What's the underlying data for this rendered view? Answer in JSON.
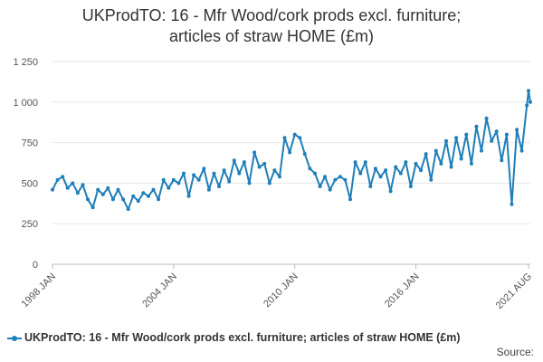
{
  "chart_data": {
    "type": "line",
    "title_line1": "UKProdTO: 16 - Mfr Wood/cork prods excl. furniture;",
    "title_line2": "articles of straw HOME (£m)",
    "series": [
      {
        "name": "UKProdTO: 16 - Mfr Wood/cork prods excl. furniture; articles of straw HOME (£m)",
        "color": "#1f7fb8",
        "points": [
          [
            1998.0,
            460
          ],
          [
            1998.25,
            520
          ],
          [
            1998.5,
            540
          ],
          [
            1998.75,
            470
          ],
          [
            1999.0,
            500
          ],
          [
            1999.25,
            440
          ],
          [
            1999.5,
            490
          ],
          [
            1999.75,
            400
          ],
          [
            2000.0,
            350
          ],
          [
            2000.25,
            460
          ],
          [
            2000.5,
            430
          ],
          [
            2000.75,
            470
          ],
          [
            2001.0,
            400
          ],
          [
            2001.25,
            460
          ],
          [
            2001.5,
            400
          ],
          [
            2001.75,
            340
          ],
          [
            2002.0,
            420
          ],
          [
            2002.25,
            390
          ],
          [
            2002.5,
            440
          ],
          [
            2002.75,
            420
          ],
          [
            2003.0,
            460
          ],
          [
            2003.25,
            400
          ],
          [
            2003.5,
            520
          ],
          [
            2003.75,
            470
          ],
          [
            2004.0,
            520
          ],
          [
            2004.25,
            500
          ],
          [
            2004.5,
            560
          ],
          [
            2004.75,
            420
          ],
          [
            2005.0,
            550
          ],
          [
            2005.25,
            520
          ],
          [
            2005.5,
            590
          ],
          [
            2005.75,
            460
          ],
          [
            2006.0,
            560
          ],
          [
            2006.25,
            480
          ],
          [
            2006.5,
            580
          ],
          [
            2006.75,
            510
          ],
          [
            2007.0,
            640
          ],
          [
            2007.25,
            560
          ],
          [
            2007.5,
            630
          ],
          [
            2007.75,
            500
          ],
          [
            2008.0,
            690
          ],
          [
            2008.25,
            600
          ],
          [
            2008.5,
            620
          ],
          [
            2008.75,
            500
          ],
          [
            2009.0,
            580
          ],
          [
            2009.25,
            540
          ],
          [
            2009.5,
            780
          ],
          [
            2009.75,
            690
          ],
          [
            2010.0,
            800
          ],
          [
            2010.25,
            780
          ],
          [
            2010.5,
            680
          ],
          [
            2010.75,
            590
          ],
          [
            2011.0,
            560
          ],
          [
            2011.25,
            480
          ],
          [
            2011.5,
            540
          ],
          [
            2011.75,
            460
          ],
          [
            2012.0,
            520
          ],
          [
            2012.25,
            540
          ],
          [
            2012.5,
            520
          ],
          [
            2012.75,
            400
          ],
          [
            2013.0,
            630
          ],
          [
            2013.25,
            560
          ],
          [
            2013.5,
            630
          ],
          [
            2013.75,
            480
          ],
          [
            2014.0,
            590
          ],
          [
            2014.25,
            540
          ],
          [
            2014.5,
            580
          ],
          [
            2014.75,
            450
          ],
          [
            2015.0,
            600
          ],
          [
            2015.25,
            560
          ],
          [
            2015.5,
            630
          ],
          [
            2015.75,
            480
          ],
          [
            2016.0,
            620
          ],
          [
            2016.25,
            580
          ],
          [
            2016.5,
            680
          ],
          [
            2016.75,
            520
          ],
          [
            2017.0,
            700
          ],
          [
            2017.25,
            620
          ],
          [
            2017.5,
            760
          ],
          [
            2017.75,
            600
          ],
          [
            2018.0,
            780
          ],
          [
            2018.25,
            650
          ],
          [
            2018.5,
            800
          ],
          [
            2018.75,
            620
          ],
          [
            2019.0,
            850
          ],
          [
            2019.25,
            700
          ],
          [
            2019.5,
            900
          ],
          [
            2019.75,
            760
          ],
          [
            2020.0,
            820
          ],
          [
            2020.25,
            640
          ],
          [
            2020.5,
            800
          ],
          [
            2020.75,
            370
          ],
          [
            2021.0,
            830
          ],
          [
            2021.25,
            700
          ],
          [
            2021.5,
            980
          ],
          [
            2021.58,
            1070
          ],
          [
            2021.67,
            1000
          ]
        ]
      }
    ],
    "x_ticks": [
      "1998 JAN",
      "2004 JAN",
      "2010 JAN",
      "2016 JAN",
      "2021 AUG"
    ],
    "x_tick_values": [
      1998.0,
      2004.0,
      2010.0,
      2016.0,
      2021.58
    ],
    "y_ticks": [
      "0",
      "250",
      "500",
      "750",
      "1 000",
      "1 250"
    ],
    "y_tick_values": [
      0,
      250,
      500,
      750,
      1000,
      1250
    ],
    "xlim": [
      1998.0,
      2021.67
    ],
    "ylim": [
      0,
      1250
    ],
    "grid": "horizontal",
    "legend_position": "bottom",
    "source_label": "Source:"
  }
}
